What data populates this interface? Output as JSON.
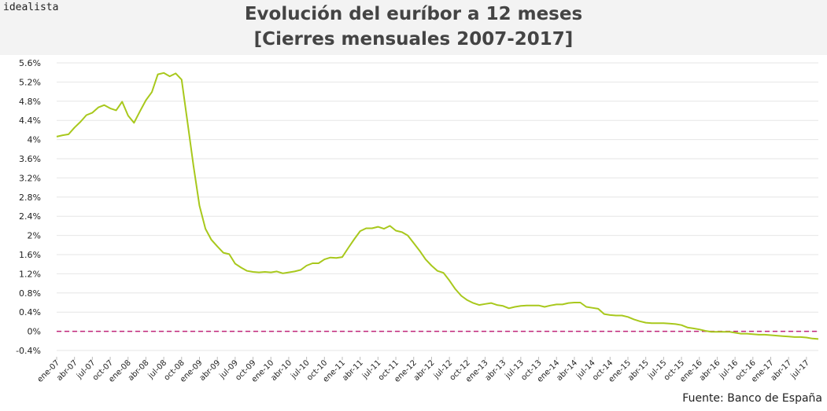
{
  "brand": "idealista",
  "title_line1": "Evolución del euríbor a 12 meses",
  "title_line2": "[Cierres mensuales 2007-2017]",
  "source": "Fuente: Banco de España",
  "colors": {
    "line": "#a8c81c",
    "zero_line": "#c0257a",
    "grid": "#e6e6e6"
  },
  "chart_data": {
    "type": "line",
    "ylim": [
      -0.4,
      5.6
    ],
    "y_ticks": [
      "-0.4%",
      "0%",
      "0.4%",
      "0.8%",
      "1.2%",
      "1.6%",
      "2%",
      "2.4%",
      "2.8%",
      "3.2%",
      "3.6%",
      "4%",
      "4.4%",
      "4.8%",
      "5.2%",
      "5.6%"
    ],
    "x_tick_labels": [
      "ene-07",
      "abr-07",
      "jul-07",
      "oct-07",
      "ene-08",
      "abr-08",
      "jul-08",
      "oct-08",
      "ene-09",
      "abr-09",
      "jul-09",
      "oct-09",
      "ene-10",
      "abr-10",
      "jul-10",
      "oct-10",
      "ene-11",
      "abr-11",
      "jul-11",
      "oct-11",
      "ene-12",
      "abr-12",
      "jul-12",
      "oct-12",
      "ene-13",
      "abr-13",
      "jul-13",
      "oct-13",
      "ene-14",
      "abr-14",
      "jul-14",
      "oct-14",
      "ene-15",
      "abr-15",
      "jul-15",
      "oct-15",
      "ene-16",
      "abr-16",
      "jul-16",
      "oct-16",
      "ene-17",
      "abr-17",
      "jul-17"
    ],
    "grid": true,
    "reference_line": 0,
    "series": [
      {
        "values": [
          4.06,
          4.09,
          4.11,
          4.25,
          4.37,
          4.51,
          4.56,
          4.67,
          4.72,
          4.65,
          4.61,
          4.79,
          4.5,
          4.35,
          4.59,
          4.82,
          4.99,
          5.36,
          5.39,
          5.32,
          5.38,
          5.25,
          4.35,
          3.45,
          2.62,
          2.14,
          1.91,
          1.77,
          1.64,
          1.61,
          1.41,
          1.33,
          1.26,
          1.24,
          1.23,
          1.24,
          1.23,
          1.25,
          1.21,
          1.23,
          1.25,
          1.28,
          1.37,
          1.42,
          1.42,
          1.5,
          1.54,
          1.53,
          1.55,
          1.74,
          1.92,
          2.09,
          2.15,
          2.15,
          2.18,
          2.14,
          2.2,
          2.1,
          2.07,
          2.0,
          1.84,
          1.68,
          1.5,
          1.37,
          1.26,
          1.22,
          1.06,
          0.88,
          0.74,
          0.65,
          0.59,
          0.55,
          0.57,
          0.59,
          0.55,
          0.53,
          0.48,
          0.51,
          0.53,
          0.54,
          0.54,
          0.54,
          0.51,
          0.54,
          0.56,
          0.56,
          0.59,
          0.6,
          0.6,
          0.51,
          0.49,
          0.47,
          0.36,
          0.34,
          0.33,
          0.33,
          0.3,
          0.25,
          0.21,
          0.18,
          0.17,
          0.17,
          0.17,
          0.16,
          0.15,
          0.13,
          0.08,
          0.06,
          0.04,
          0.01,
          -0.01,
          -0.01,
          -0.01,
          -0.01,
          -0.03,
          -0.05,
          -0.05,
          -0.06,
          -0.07,
          -0.07,
          -0.08,
          -0.09,
          -0.1,
          -0.11,
          -0.12,
          -0.12,
          -0.13,
          -0.15,
          -0.16
        ]
      }
    ]
  }
}
